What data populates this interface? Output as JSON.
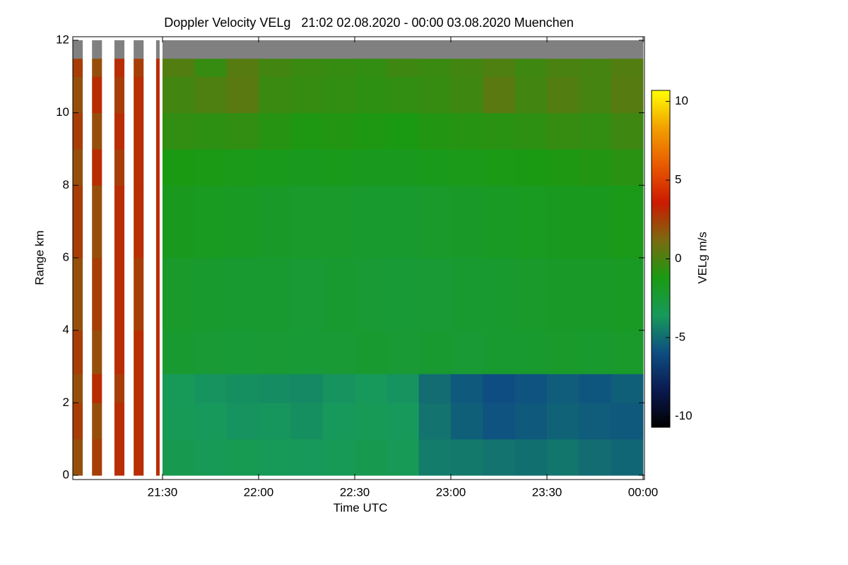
{
  "chart_data": {
    "type": "heatmap",
    "title": "Doppler Velocity VELg   21:02 02.08.2020 - 00:00 03.08.2020 Muenchen",
    "xlabel": "Time UTC",
    "ylabel": "Range km",
    "colorbar_label": "VELg m/s",
    "xlim": [
      "21:02",
      "00:00"
    ],
    "xticks": [
      "21:30",
      "22:00",
      "22:30",
      "23:00",
      "23:30",
      "00:00"
    ],
    "ylim": [
      0,
      12
    ],
    "yticks": [
      0,
      2,
      4,
      6,
      8,
      10,
      12
    ],
    "clim": [
      -10.7,
      10.7
    ],
    "cticks": [
      -10,
      -5,
      0,
      5,
      10
    ],
    "colorscale": [
      "#000000",
      "#0a1a50",
      "#0e4e82",
      "#179a5a",
      "#1a9a12",
      "#7a6a10",
      "#cc1a00",
      "#e85a00",
      "#f2a000",
      "#ffff00"
    ],
    "nodata_color": "#808080",
    "x": [
      "21:02",
      "21:08",
      "21:15",
      "21:21",
      "21:28",
      "21:30",
      "21:40",
      "21:50",
      "22:00",
      "22:10",
      "22:20",
      "22:30",
      "22:40",
      "22:50",
      "23:00",
      "23:10",
      "23:20",
      "23:30",
      "23:40",
      "23:50"
    ],
    "x_end": [
      "21:05",
      "21:11",
      "21:18",
      "21:24",
      "21:29",
      "21:40",
      "21:50",
      "22:00",
      "22:10",
      "22:20",
      "22:30",
      "22:40",
      "22:50",
      "23:00",
      "23:10",
      "23:20",
      "23:30",
      "23:40",
      "23:50",
      "00:00"
    ],
    "y_edges": [
      0,
      1,
      2,
      2.8,
      4,
      6,
      8,
      9,
      10,
      11,
      11.5,
      12
    ],
    "z": [
      [
        2,
        2.5,
        3,
        3,
        3,
        -3.2,
        -3.4,
        -3.3,
        -3.5,
        -3.6,
        -3.4,
        -3.2,
        -3.4,
        -4.5,
        -4.6,
        -4.8,
        -4.9,
        -4.7,
        -5.0,
        -5.2
      ],
      [
        2.5,
        2,
        3,
        3,
        3,
        -3.4,
        -3.6,
        -3.8,
        -3.7,
        -3.9,
        -3.6,
        -3.4,
        -3.6,
        -4.8,
        -5.4,
        -5.8,
        -5.6,
        -5.3,
        -5.5,
        -5.6
      ],
      [
        2,
        3,
        2.5,
        3,
        3,
        -3.5,
        -3.8,
        -3.9,
        -4.0,
        -4.1,
        -3.8,
        -3.6,
        -3.8,
        -5.0,
        -5.6,
        -6.0,
        -5.8,
        -5.5,
        -5.7,
        -5.4
      ],
      [
        2.5,
        2,
        3,
        3,
        3,
        -2.2,
        -2.3,
        -2.4,
        -2.3,
        -2.4,
        -2.3,
        -2.2,
        -2.3,
        -2.2,
        -2.3,
        -2.2,
        -2.1,
        -2.0,
        -2.1,
        -2.0
      ],
      [
        2,
        2.5,
        3,
        2.5,
        3,
        -2.0,
        -2.1,
        -2.2,
        -2.2,
        -2.3,
        -2.2,
        -2.3,
        -2.4,
        -2.3,
        -2.2,
        -2.1,
        -2.0,
        -1.9,
        -1.9,
        -1.8
      ],
      [
        2.5,
        2,
        3,
        3,
        3,
        -1.6,
        -1.7,
        -1.8,
        -1.9,
        -2.0,
        -2.0,
        -2.1,
        -2.1,
        -2.0,
        -1.9,
        -1.8,
        -1.7,
        -1.6,
        -1.6,
        -1.4
      ],
      [
        2,
        3,
        2.5,
        3,
        3,
        -1.2,
        -1.3,
        -1.4,
        -1.5,
        -1.6,
        -1.5,
        -1.6,
        -1.6,
        -1.5,
        -1.4,
        -1.3,
        -1.2,
        -1.1,
        -1.0,
        -0.8
      ],
      [
        2.5,
        2,
        3,
        3,
        3,
        -0.6,
        -0.7,
        -0.6,
        -0.9,
        -1.1,
        -1.0,
        -1.1,
        -1.2,
        -1.0,
        -0.9,
        -0.8,
        -0.7,
        -0.5,
        -0.6,
        -0.3
      ],
      [
        2,
        3,
        2.5,
        3,
        3,
        -0.2,
        0.1,
        0.4,
        -0.4,
        -0.5,
        -0.6,
        -0.7,
        -0.6,
        -0.5,
        -0.3,
        0.4,
        -0.2,
        0.2,
        -0.1,
        0.3
      ],
      [
        2.5,
        2,
        3,
        2.5,
        3,
        0.2,
        -0.5,
        0.3,
        -0.2,
        -0.4,
        -0.5,
        -0.6,
        -0.3,
        -0.4,
        -0.2,
        0.1,
        -0.3,
        0.0,
        -0.1,
        0.2
      ],
      [
        null,
        null,
        null,
        null,
        null,
        null,
        null,
        null,
        null,
        null,
        null,
        null,
        null,
        null,
        null,
        null,
        null,
        null,
        null,
        null
      ]
    ]
  }
}
